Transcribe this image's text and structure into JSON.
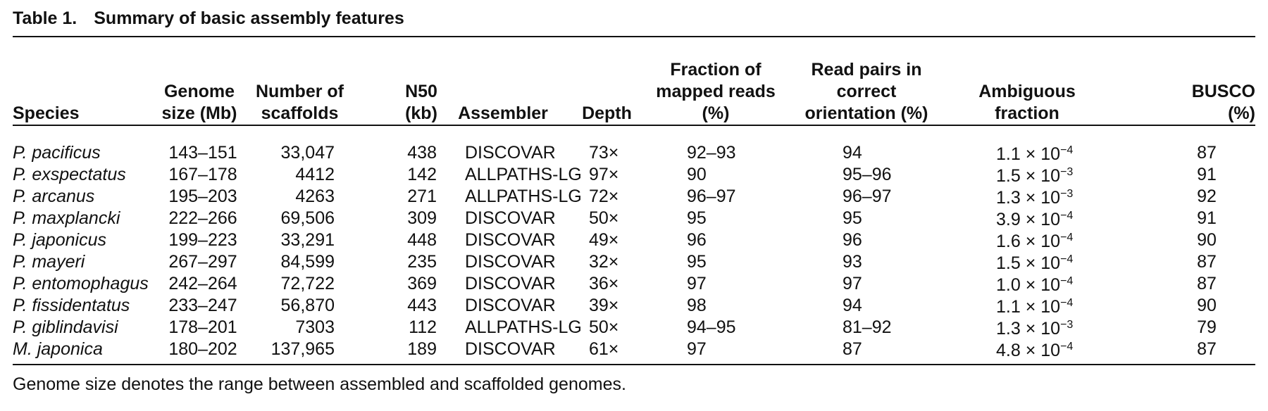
{
  "caption": {
    "label": "Table 1.",
    "title": "Summary of basic assembly features"
  },
  "headers": [
    [
      "Species"
    ],
    [
      "Genome",
      "size (Mb)"
    ],
    [
      "Number of",
      "scaffolds"
    ],
    [
      "N50",
      "(kb)"
    ],
    [
      "Assembler"
    ],
    [
      "Depth"
    ],
    [
      "Fraction of",
      "mapped reads",
      "(%)"
    ],
    [
      "Read pairs in",
      "correct",
      "orientation (%)"
    ],
    [
      "Ambiguous",
      "fraction"
    ],
    [
      "BUSCO",
      "(%)"
    ]
  ],
  "rows": [
    {
      "species": "P. pacificus",
      "genome_size": "143–151",
      "scaffolds": "33,047",
      "n50": "438",
      "assembler": "DISCOVAR",
      "depth": "73×",
      "mapped": "92–93",
      "orientation": "94",
      "amb_mantissa": "1.1",
      "amb_exp": "−4",
      "busco": "87"
    },
    {
      "species": "P. exspectatus",
      "genome_size": "167–178",
      "scaffolds": "4412",
      "n50": "142",
      "assembler": "ALLPATHS-LG",
      "depth": "97×",
      "mapped": "90",
      "orientation": "95–96",
      "amb_mantissa": "1.5",
      "amb_exp": "−3",
      "busco": "91"
    },
    {
      "species": "P. arcanus",
      "genome_size": "195–203",
      "scaffolds": "4263",
      "n50": "271",
      "assembler": "ALLPATHS-LG",
      "depth": "72×",
      "mapped": "96–97",
      "orientation": "96–97",
      "amb_mantissa": "1.3",
      "amb_exp": "−3",
      "busco": "92"
    },
    {
      "species": "P. maxplancki",
      "genome_size": "222–266",
      "scaffolds": "69,506",
      "n50": "309",
      "assembler": "DISCOVAR",
      "depth": "50×",
      "mapped": "95",
      "orientation": "95",
      "amb_mantissa": "3.9",
      "amb_exp": "−4",
      "busco": "91"
    },
    {
      "species": "P. japonicus",
      "genome_size": "199–223",
      "scaffolds": "33,291",
      "n50": "448",
      "assembler": "DISCOVAR",
      "depth": "49×",
      "mapped": "96",
      "orientation": "96",
      "amb_mantissa": "1.6",
      "amb_exp": "−4",
      "busco": "90"
    },
    {
      "species": "P. mayeri",
      "genome_size": "267–297",
      "scaffolds": "84,599",
      "n50": "235",
      "assembler": "DISCOVAR",
      "depth": "32×",
      "mapped": "95",
      "orientation": "93",
      "amb_mantissa": "1.5",
      "amb_exp": "−4",
      "busco": "87"
    },
    {
      "species": "P. entomophagus",
      "genome_size": "242–264",
      "scaffolds": "72,722",
      "n50": "369",
      "assembler": "DISCOVAR",
      "depth": "36×",
      "mapped": "97",
      "orientation": "97",
      "amb_mantissa": "1.0",
      "amb_exp": "−4",
      "busco": "87"
    },
    {
      "species": "P. fissidentatus",
      "genome_size": "233–247",
      "scaffolds": "56,870",
      "n50": "443",
      "assembler": "DISCOVAR",
      "depth": "39×",
      "mapped": "98",
      "orientation": "94",
      "amb_mantissa": "1.1",
      "amb_exp": "−4",
      "busco": "90"
    },
    {
      "species": "P. giblindavisi",
      "genome_size": "178–201",
      "scaffolds": "7303",
      "n50": "112",
      "assembler": "ALLPATHS-LG",
      "depth": "50×",
      "mapped": "94–95",
      "orientation": "81–92",
      "amb_mantissa": "1.3",
      "amb_exp": "−3",
      "busco": "79"
    },
    {
      "species": "M. japonica",
      "genome_size": "180–202",
      "scaffolds": "137,965",
      "n50": "189",
      "assembler": "DISCOVAR",
      "depth": "61×",
      "mapped": "97",
      "orientation": "87",
      "amb_mantissa": "4.8",
      "amb_exp": "−4",
      "busco": "87"
    }
  ],
  "ambiguous_multiplier": "× 10",
  "footnote": "Genome size denotes the range between assembled and scaffolded genomes."
}
